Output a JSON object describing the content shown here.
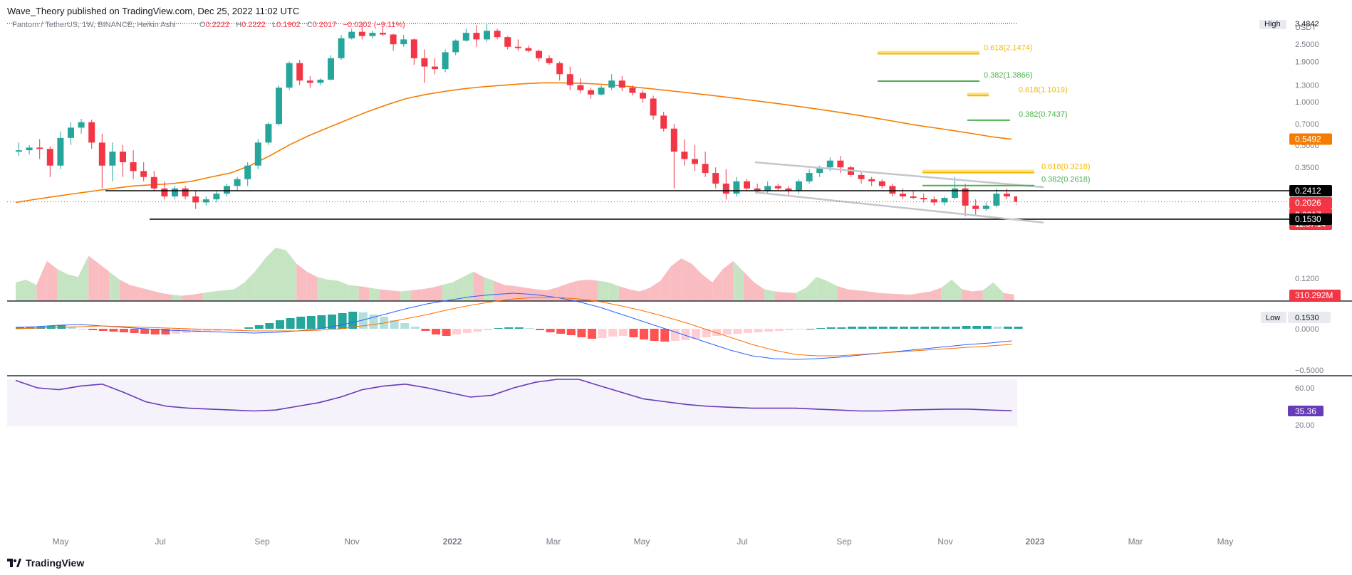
{
  "publish_line": "Wave_Theory published on TradingView.com, Dec 25, 2022 11:02 UTC",
  "footer_brand": "TradingView",
  "colors": {
    "up": "#26a69a",
    "down": "#f23645",
    "ema": "#f57c00",
    "fib_gold": "#f5b800",
    "fib_green": "#4caf50",
    "vol_up": "#c5e4c1",
    "vol_down": "#f9bcc1",
    "macd": "#2962ff",
    "signal": "#ff6d00",
    "rsi": "#673ab7"
  },
  "legend": {
    "symbol": "Fantom / TetherUS, 1W, BINANCE, Heikin Ashi",
    "o_label": "O",
    "o_value": "0.2222",
    "h_label": "H",
    "h_value": "0.2222",
    "l_label": "L",
    "l_value": "0.1902",
    "c_label": "C",
    "c_value": "0.2017",
    "change": "−0.0202 (−9.11%)"
  },
  "price_scale": {
    "currency": "USDT",
    "ticks": [
      "2.5000",
      "1.9000",
      "1.3000",
      "1.0000",
      "0.7000",
      "0.5000",
      "0.3500",
      "0.1200"
    ]
  },
  "markers": {
    "high_label": "High",
    "high_value": "3.4842",
    "low_label": "Low",
    "low_value": "0.1530",
    "ema_value": "0.5492",
    "resistance_value": "0.2412",
    "prev_close_value": "0.2026",
    "last_value": "0.2017",
    "countdown": "12:57:14",
    "support_value": "0.1530",
    "volume_value": "310.292M"
  },
  "macd_scale": {
    "ticks": [
      "0.0000",
      "−0.5000"
    ]
  },
  "rsi_scale": {
    "ticks": [
      "60.00",
      "20.00"
    ],
    "value": "35.36"
  },
  "fib_labels": [
    {
      "level": "0.618",
      "value": "2.1474",
      "text": "0.618(2.1474)",
      "color": "gold"
    },
    {
      "level": "0.382",
      "value": "1.3866",
      "text": "0.382(1.3866)",
      "color": "green"
    },
    {
      "level": "0.618",
      "value": "1.1019",
      "text": "0.618(1.1019)",
      "color": "gold"
    },
    {
      "level": "0.382",
      "value": "0.7437",
      "text": "0.382(0.7437)",
      "color": "green"
    },
    {
      "level": "0.618",
      "value": "0.3218",
      "text": "0.618(0.3218)",
      "color": "gold"
    },
    {
      "level": "0.382",
      "value": "0.2618",
      "text": "0.382(0.2618)",
      "color": "green"
    }
  ],
  "time_axis": [
    "May",
    "Jul",
    "Sep",
    "Nov",
    "2022",
    "Mar",
    "May",
    "Jul",
    "Sep",
    "Nov",
    "2023",
    "Mar",
    "May"
  ],
  "chart_data": {
    "type": "candlestick",
    "title": "Fantom / TetherUS, 1W, BINANCE, Heikin Ashi",
    "timeframe": "1W",
    "scale": "log",
    "candles_ohlc": [
      [
        0.45,
        0.52,
        0.42,
        0.46
      ],
      [
        0.46,
        0.5,
        0.43,
        0.48
      ],
      [
        0.48,
        0.55,
        0.4,
        0.47
      ],
      [
        0.47,
        0.49,
        0.3,
        0.36
      ],
      [
        0.36,
        0.62,
        0.34,
        0.56
      ],
      [
        0.56,
        0.72,
        0.5,
        0.66
      ],
      [
        0.66,
        0.76,
        0.6,
        0.72
      ],
      [
        0.72,
        0.75,
        0.47,
        0.52
      ],
      [
        0.52,
        0.6,
        0.25,
        0.36
      ],
      [
        0.36,
        0.52,
        0.28,
        0.45
      ],
      [
        0.45,
        0.5,
        0.3,
        0.38
      ],
      [
        0.38,
        0.46,
        0.29,
        0.33
      ],
      [
        0.33,
        0.38,
        0.28,
        0.3
      ],
      [
        0.3,
        0.33,
        0.24,
        0.25
      ],
      [
        0.25,
        0.28,
        0.21,
        0.22
      ],
      [
        0.22,
        0.26,
        0.21,
        0.25
      ],
      [
        0.25,
        0.26,
        0.21,
        0.22
      ],
      [
        0.22,
        0.24,
        0.18,
        0.2
      ],
      [
        0.2,
        0.22,
        0.19,
        0.21
      ],
      [
        0.21,
        0.24,
        0.2,
        0.23
      ],
      [
        0.23,
        0.27,
        0.22,
        0.26
      ],
      [
        0.26,
        0.3,
        0.24,
        0.29
      ],
      [
        0.29,
        0.38,
        0.26,
        0.36
      ],
      [
        0.36,
        0.55,
        0.34,
        0.52
      ],
      [
        0.52,
        0.72,
        0.5,
        0.7
      ],
      [
        0.7,
        1.3,
        0.68,
        1.25
      ],
      [
        1.25,
        1.9,
        1.2,
        1.85
      ],
      [
        1.85,
        1.95,
        1.3,
        1.4
      ],
      [
        1.4,
        1.5,
        1.25,
        1.35
      ],
      [
        1.35,
        1.45,
        1.3,
        1.42
      ],
      [
        1.42,
        2.1,
        1.4,
        2.0
      ],
      [
        2.0,
        2.9,
        1.95,
        2.75
      ],
      [
        2.75,
        3.2,
        2.7,
        3.05
      ],
      [
        3.05,
        3.48,
        2.7,
        2.85
      ],
      [
        2.85,
        3.1,
        2.75,
        3.0
      ],
      [
        3.0,
        3.3,
        2.85,
        2.92
      ],
      [
        2.92,
        2.95,
        2.25,
        2.5
      ],
      [
        2.5,
        2.9,
        2.4,
        2.7
      ],
      [
        2.7,
        2.75,
        1.8,
        2.0
      ],
      [
        2.0,
        2.3,
        1.35,
        1.75
      ],
      [
        1.75,
        2.0,
        1.55,
        1.68
      ],
      [
        1.68,
        2.3,
        1.6,
        2.2
      ],
      [
        2.2,
        2.7,
        2.1,
        2.65
      ],
      [
        2.65,
        3.2,
        2.6,
        3.0
      ],
      [
        3.0,
        3.4,
        2.4,
        2.7
      ],
      [
        2.7,
        3.45,
        2.6,
        3.1
      ],
      [
        3.1,
        3.2,
        2.7,
        2.8
      ],
      [
        2.8,
        2.85,
        2.3,
        2.4
      ],
      [
        2.4,
        2.7,
        2.25,
        2.35
      ],
      [
        2.35,
        2.45,
        2.2,
        2.25
      ],
      [
        2.25,
        2.3,
        1.9,
        2.0
      ],
      [
        2.0,
        2.1,
        1.8,
        1.85
      ],
      [
        1.85,
        1.9,
        1.4,
        1.55
      ],
      [
        1.55,
        1.75,
        1.2,
        1.3
      ],
      [
        1.3,
        1.45,
        1.15,
        1.2
      ],
      [
        1.2,
        1.25,
        1.05,
        1.12
      ],
      [
        1.12,
        1.3,
        1.1,
        1.25
      ],
      [
        1.25,
        1.55,
        1.2,
        1.4
      ],
      [
        1.4,
        1.5,
        1.18,
        1.25
      ],
      [
        1.25,
        1.3,
        1.1,
        1.15
      ],
      [
        1.15,
        1.2,
        0.98,
        1.05
      ],
      [
        1.05,
        1.1,
        0.75,
        0.8
      ],
      [
        0.8,
        0.85,
        0.62,
        0.65
      ],
      [
        0.65,
        0.7,
        0.25,
        0.45
      ],
      [
        0.45,
        0.55,
        0.36,
        0.4
      ],
      [
        0.4,
        0.5,
        0.33,
        0.37
      ],
      [
        0.37,
        0.45,
        0.3,
        0.32
      ],
      [
        0.32,
        0.35,
        0.25,
        0.27
      ],
      [
        0.27,
        0.34,
        0.21,
        0.23
      ],
      [
        0.23,
        0.3,
        0.22,
        0.28
      ],
      [
        0.28,
        0.29,
        0.24,
        0.25
      ],
      [
        0.25,
        0.27,
        0.23,
        0.24
      ],
      [
        0.24,
        0.28,
        0.23,
        0.26
      ],
      [
        0.26,
        0.27,
        0.24,
        0.25
      ],
      [
        0.25,
        0.26,
        0.22,
        0.24
      ],
      [
        0.24,
        0.29,
        0.23,
        0.28
      ],
      [
        0.28,
        0.34,
        0.27,
        0.32
      ],
      [
        0.32,
        0.36,
        0.3,
        0.35
      ],
      [
        0.35,
        0.41,
        0.33,
        0.39
      ],
      [
        0.39,
        0.42,
        0.32,
        0.35
      ],
      [
        0.35,
        0.36,
        0.3,
        0.31
      ],
      [
        0.31,
        0.33,
        0.27,
        0.29
      ],
      [
        0.29,
        0.3,
        0.26,
        0.28
      ],
      [
        0.28,
        0.29,
        0.25,
        0.26
      ],
      [
        0.26,
        0.27,
        0.22,
        0.23
      ],
      [
        0.23,
        0.25,
        0.21,
        0.22
      ],
      [
        0.22,
        0.24,
        0.21,
        0.215
      ],
      [
        0.215,
        0.23,
        0.2,
        0.21
      ],
      [
        0.21,
        0.22,
        0.19,
        0.2
      ],
      [
        0.2,
        0.22,
        0.19,
        0.215
      ],
      [
        0.215,
        0.3,
        0.21,
        0.25
      ],
      [
        0.25,
        0.27,
        0.16,
        0.19
      ],
      [
        0.19,
        0.21,
        0.165,
        0.18
      ],
      [
        0.18,
        0.2,
        0.175,
        0.19
      ],
      [
        0.19,
        0.25,
        0.185,
        0.23
      ],
      [
        0.23,
        0.25,
        0.21,
        0.22
      ],
      [
        0.22,
        0.2222,
        0.1902,
        0.2017
      ]
    ],
    "ema": [
      0.2,
      0.21,
      0.22,
      0.23,
      0.24,
      0.25,
      0.26,
      0.265,
      0.27,
      0.28,
      0.3,
      0.32,
      0.36,
      0.42,
      0.5,
      0.58,
      0.66,
      0.75,
      0.85,
      0.95,
      1.05,
      1.12,
      1.18,
      1.23,
      1.27,
      1.3,
      1.33,
      1.35,
      1.35,
      1.34,
      1.32,
      1.29,
      1.25,
      1.21,
      1.17,
      1.13,
      1.09,
      1.05,
      1.01,
      0.97,
      0.93,
      0.89,
      0.85,
      0.81,
      0.77,
      0.73,
      0.69,
      0.66,
      0.63,
      0.6,
      0.57,
      0.5492
    ],
    "ema_start_index": 0,
    "fibonacci_levels": [
      {
        "level": 0.618,
        "price": 2.1474
      },
      {
        "level": 0.382,
        "price": 1.3866
      },
      {
        "level": 0.618,
        "price": 1.1019
      },
      {
        "level": 0.382,
        "price": 0.7437
      },
      {
        "level": 0.618,
        "price": 0.3218
      },
      {
        "level": 0.382,
        "price": 0.2618
      }
    ],
    "horizontal_levels": [
      0.2412,
      0.153
    ],
    "channel": {
      "upper": [
        [
          0.38,
          0.255
        ]
      ],
      "lower": [
        [
          0.235,
          0.145
        ]
      ]
    },
    "high": 3.4842,
    "low": 0.153,
    "volume_last": "310.292M",
    "volume_profile": [
      0.35,
      0.4,
      0.3,
      0.75,
      0.6,
      0.5,
      0.45,
      0.85,
      0.7,
      0.55,
      0.4,
      0.3,
      0.25,
      0.2,
      0.15,
      0.12,
      0.1,
      0.12,
      0.15,
      0.18,
      0.2,
      0.22,
      0.35,
      0.55,
      0.8,
      1.0,
      0.95,
      0.7,
      0.55,
      0.45,
      0.4,
      0.38,
      0.3,
      0.28,
      0.25,
      0.22,
      0.2,
      0.18,
      0.2,
      0.22,
      0.25,
      0.3,
      0.35,
      0.45,
      0.55,
      0.45,
      0.38,
      0.3,
      0.28,
      0.25,
      0.22,
      0.2,
      0.25,
      0.32,
      0.38,
      0.4,
      0.38,
      0.35,
      0.28,
      0.22,
      0.18,
      0.25,
      0.38,
      0.65,
      0.8,
      0.7,
      0.5,
      0.35,
      0.6,
      0.75,
      0.55,
      0.35,
      0.22,
      0.18,
      0.16,
      0.15,
      0.25,
      0.45,
      0.38,
      0.28,
      0.22,
      0.2,
      0.18,
      0.15,
      0.14,
      0.13,
      0.12,
      0.15,
      0.18,
      0.25,
      0.4,
      0.22,
      0.18,
      0.2,
      0.35,
      0.15,
      0.12
    ],
    "macd_histogram": [
      0.02,
      0.02,
      0.03,
      0.04,
      0.05,
      0.03,
      0.0,
      -0.02,
      -0.03,
      -0.04,
      -0.05,
      -0.06,
      -0.07,
      -0.08,
      -0.08,
      -0.07,
      -0.06,
      -0.05,
      -0.04,
      -0.03,
      -0.02,
      -0.01,
      0.02,
      0.05,
      0.08,
      0.12,
      0.15,
      0.17,
      0.18,
      0.19,
      0.2,
      0.22,
      0.24,
      0.23,
      0.2,
      0.17,
      0.12,
      0.08,
      0.03,
      -0.03,
      -0.08,
      -0.1,
      -0.08,
      -0.06,
      -0.04,
      -0.02,
      0.01,
      0.02,
      0.02,
      0.01,
      -0.02,
      -0.05,
      -0.07,
      -0.09,
      -0.12,
      -0.14,
      -0.13,
      -0.11,
      -0.1,
      -0.12,
      -0.15,
      -0.17,
      -0.18,
      -0.17,
      -0.16,
      -0.14,
      -0.12,
      -0.1,
      -0.08,
      -0.07,
      -0.06,
      -0.05,
      -0.04,
      -0.03,
      -0.02,
      -0.01,
      0.0,
      0.01,
      0.02,
      0.02,
      0.03,
      0.03,
      0.03,
      0.03,
      0.03,
      0.03,
      0.03,
      0.03,
      0.03,
      0.03,
      0.03,
      0.04,
      0.04,
      0.04,
      0.03,
      0.03,
      0.03
    ],
    "rsi_range": [
      20,
      80
    ],
    "rsi_last": 35.36
  }
}
